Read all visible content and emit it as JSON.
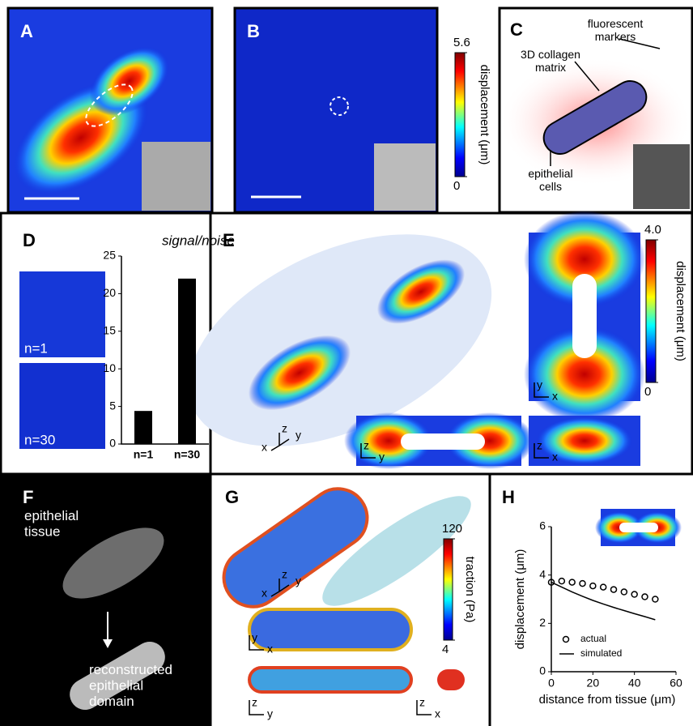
{
  "panels": {
    "A": {
      "label": "A"
    },
    "B": {
      "label": "B",
      "colorbar": {
        "title": "displacement (μm)",
        "ticks": [
          0,
          5.6
        ]
      }
    },
    "C": {
      "label": "C",
      "annotations": [
        "fluorescent markers",
        "3D collagen matrix",
        "epithelial cells"
      ]
    },
    "D": {
      "label": "D",
      "images": [
        "n=1",
        "n=30"
      ]
    },
    "E": {
      "label": "E",
      "colorbar": {
        "title": "displacement (μm)",
        "ticks": [
          0,
          {
            "value": 4,
            "label": "4.0"
          }
        ]
      },
      "axes": [
        [
          "z",
          "x",
          "y"
        ],
        [
          "y",
          "x"
        ],
        [
          "z",
          "y"
        ],
        [
          "z",
          "x"
        ]
      ]
    },
    "F": {
      "label": "F",
      "annotations": [
        "epithelial tissue",
        "reconstructed epithelial domain"
      ]
    },
    "G": {
      "label": "G",
      "colorbar": {
        "title": "traction (Pa)",
        "ticks": [
          4,
          120
        ]
      },
      "axes": [
        [
          "z",
          "x",
          "y"
        ],
        [
          "y",
          "x"
        ],
        [
          "z",
          "y"
        ],
        [
          "z",
          "x"
        ]
      ]
    },
    "H": {
      "label": "H"
    }
  },
  "chart_data": [
    {
      "type": "bar",
      "title": "signal/noise",
      "categories": [
        "n=1",
        "n=30"
      ],
      "values": [
        4.4,
        22
      ],
      "color": "#000000",
      "ylim": [
        0,
        25
      ],
      "yticks": [
        0,
        5,
        10,
        15,
        20,
        25
      ]
    },
    {
      "type": "line",
      "xlabel": "distance from tissue (μm)",
      "ylabel": "displacement (μm)",
      "x": [
        0,
        5,
        10,
        15,
        20,
        25,
        30,
        35,
        40,
        45,
        50
      ],
      "series": [
        {
          "name": "actual",
          "color": "#000000",
          "marker": "circle",
          "values": [
            3.7,
            3.75,
            3.7,
            3.65,
            3.55,
            3.5,
            3.4,
            3.3,
            3.2,
            3.1,
            3.0
          ]
        },
        {
          "name": "simulated",
          "color": "#000000",
          "marker": "none",
          "values": [
            3.7,
            3.5,
            3.3,
            3.12,
            2.95,
            2.8,
            2.66,
            2.53,
            2.4,
            2.28,
            2.15
          ]
        }
      ],
      "xlim": [
        0,
        60
      ],
      "xticks": [
        0,
        20,
        40,
        60
      ],
      "ylim": [
        0,
        6
      ],
      "yticks": [
        0,
        2,
        4,
        6
      ],
      "legend": "lower left"
    }
  ]
}
